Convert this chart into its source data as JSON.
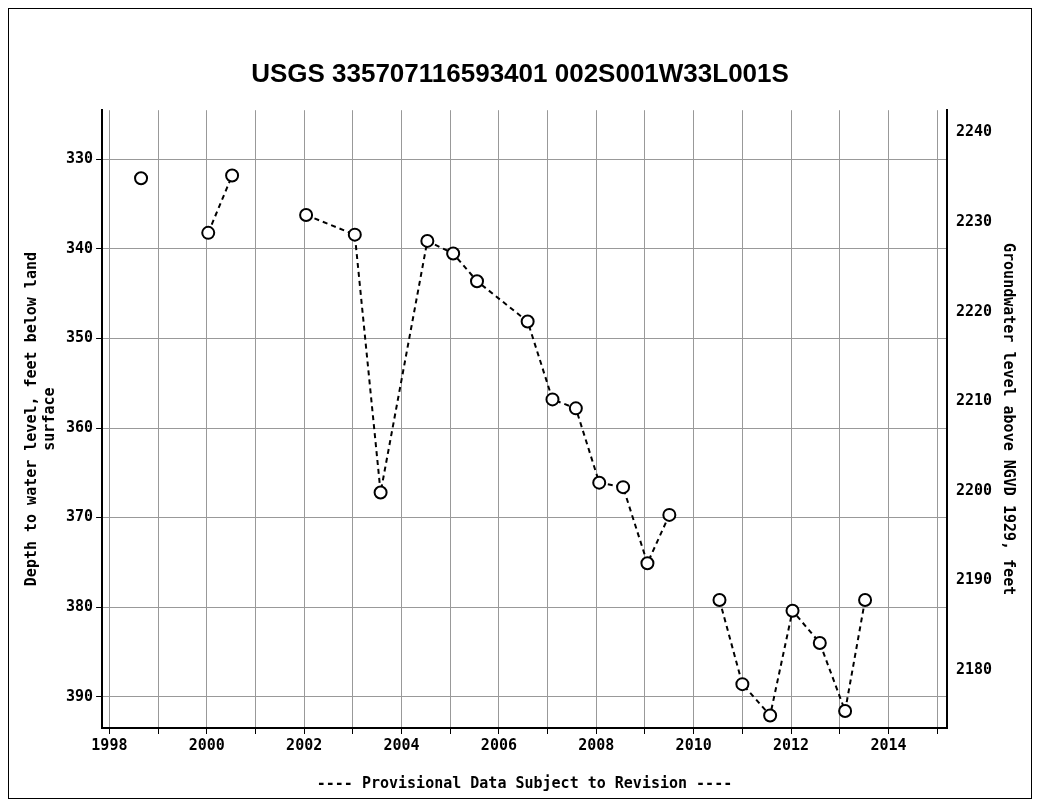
{
  "chart_data": {
    "type": "line",
    "title": "USGS 335707116593401 002S001W33L001S",
    "ylabel": "Depth to water level, feet below land surface",
    "y2label": "Groundwater level above NGVD 1929, feet",
    "annotations": [
      "---- Provisional Data Subject to Revision ----"
    ],
    "series": [
      {
        "color": "#000000",
        "x": [
          1998.65,
          1999.3,
          2000.03,
          2000.52,
          2001.3,
          2002.04,
          2003.04,
          2003.57,
          2004.53,
          2005.06,
          2005.55,
          2006.59,
          2007.1,
          2007.58,
          2008.06,
          2008.55,
          2009.05,
          2009.5,
          2010.0,
          2010.53,
          2011.0,
          2011.57,
          2012.03,
          2012.59,
          2013.11,
          2013.52
        ],
        "values": [
          332.1,
          null,
          338.2,
          331.8,
          null,
          336.2,
          338.4,
          367.2,
          339.1,
          340.5,
          343.6,
          348.1,
          356.8,
          357.8,
          366.1,
          366.6,
          375.1,
          369.7,
          null,
          379.2,
          388.6,
          392.1,
          380.4,
          384.0,
          391.6,
          379.2
        ]
      }
    ],
    "xlim": [
      1997.85,
      2015.2
    ],
    "xticks": [
      1998,
      {
        "value": 1999,
        "label": null
      },
      2000,
      {
        "value": 2001,
        "label": null
      },
      2002,
      {
        "value": 2003,
        "label": null
      },
      2004,
      {
        "value": 2005,
        "label": null
      },
      2006,
      {
        "value": 2007,
        "label": null
      },
      2008,
      {
        "value": 2009,
        "label": null
      },
      2010,
      {
        "value": 2011,
        "label": null
      },
      2012,
      {
        "value": 2013,
        "label": null
      },
      2014,
      {
        "value": 2015,
        "label": null
      }
    ],
    "ylim": [
      393.5,
      324.5
    ],
    "yticks": [
      330,
      340,
      350,
      360,
      370,
      380,
      390
    ],
    "y2lim": [
      2173.5,
      2242.5
    ],
    "y2ticks": [
      2180,
      2190,
      2200,
      2210,
      2220,
      2230,
      2240
    ],
    "grid": true,
    "legend": false,
    "marker": "circle",
    "line_style": "dashed"
  }
}
